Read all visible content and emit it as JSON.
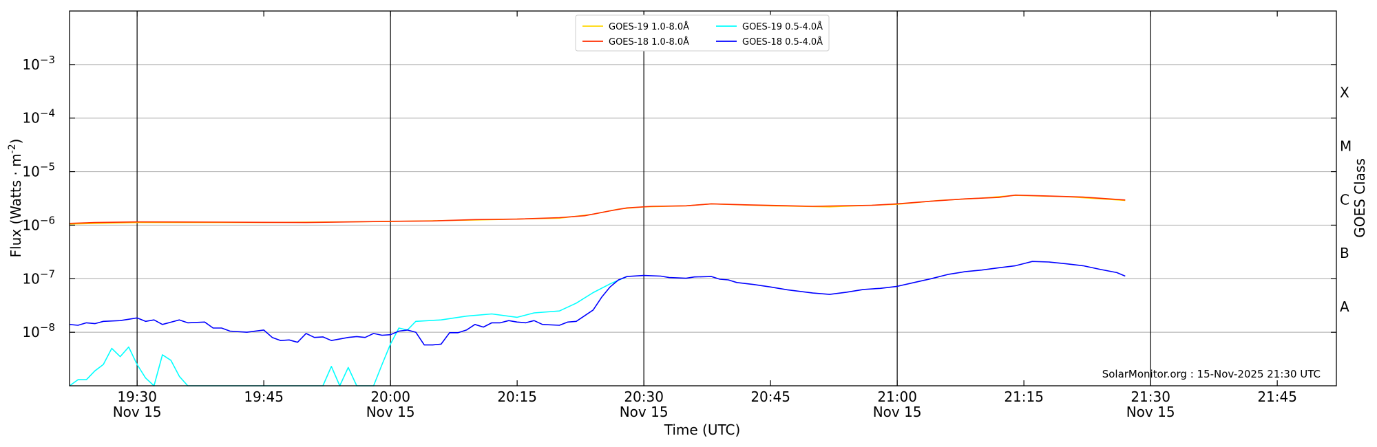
{
  "chart_data": {
    "type": "line",
    "y_scale": "log",
    "ylim": [
      1e-09,
      0.01
    ],
    "xlim": [
      "19:22",
      "21:52"
    ],
    "date": "Nov 15",
    "ylabel": "Flux (Watts · m⁻²)",
    "ylabel_exp": "-2",
    "xlabel": "Time (UTC)",
    "right_label": "GOES Class",
    "credit": "SolarMonitor.org : 15-Nov-2025 21:30 UTC",
    "grid": "horizontal",
    "legend_position": "top-center",
    "y_ticks": [
      {
        "value": 1e-08,
        "base": "10",
        "exp": "−8"
      },
      {
        "value": 1e-07,
        "base": "10",
        "exp": "−7"
      },
      {
        "value": 1e-06,
        "base": "10",
        "exp": "−6"
      },
      {
        "value": 1e-05,
        "base": "10",
        "exp": "−5"
      },
      {
        "value": 0.0001,
        "base": "10",
        "exp": "−4"
      },
      {
        "value": 0.001,
        "base": "10",
        "exp": "−3"
      }
    ],
    "x_ticks": [
      {
        "time": "19:30",
        "label": "19:30",
        "date": "Nov 15"
      },
      {
        "time": "19:45",
        "label": "19:45",
        "date": ""
      },
      {
        "time": "20:00",
        "label": "20:00",
        "date": "Nov 15"
      },
      {
        "time": "20:15",
        "label": "20:15",
        "date": ""
      },
      {
        "time": "20:30",
        "label": "20:30",
        "date": "Nov 15"
      },
      {
        "time": "20:45",
        "label": "20:45",
        "date": ""
      },
      {
        "time": "21:00",
        "label": "21:00",
        "date": "Nov 15"
      },
      {
        "time": "21:15",
        "label": "21:15",
        "date": ""
      },
      {
        "time": "21:30",
        "label": "21:30",
        "date": "Nov 15"
      },
      {
        "time": "21:45",
        "label": "21:45",
        "date": ""
      }
    ],
    "vertical_lines": [
      "19:30",
      "20:00",
      "20:30",
      "21:00",
      "21:30"
    ],
    "goes_classes": [
      {
        "label": "A",
        "value": 3e-08
      },
      {
        "label": "B",
        "value": 3e-07
      },
      {
        "label": "C",
        "value": 3e-06
      },
      {
        "label": "M",
        "value": 3e-05
      },
      {
        "label": "X",
        "value": 0.0003
      }
    ],
    "series": [
      {
        "name": "GOES-19 1.0-8.0Å",
        "color": "#ffd700",
        "points": [
          [
            "19:22",
            1.05e-06
          ],
          [
            "19:30",
            1.12e-06
          ],
          [
            "19:45",
            1.12e-06
          ],
          [
            "20:00",
            1.17e-06
          ],
          [
            "20:10",
            1.25e-06
          ],
          [
            "20:20",
            1.35e-06
          ],
          [
            "20:24",
            1.6e-06
          ],
          [
            "20:27",
            2e-06
          ],
          [
            "20:30",
            2.2e-06
          ],
          [
            "20:35",
            2.3e-06
          ],
          [
            "20:38",
            2.5e-06
          ],
          [
            "20:45",
            2.3e-06
          ],
          [
            "20:52",
            2.2e-06
          ],
          [
            "20:57",
            2.35e-06
          ],
          [
            "21:00",
            2.45e-06
          ],
          [
            "21:05",
            2.9e-06
          ],
          [
            "21:10",
            3.2e-06
          ],
          [
            "21:14",
            3.6e-06
          ],
          [
            "21:20",
            3.4e-06
          ],
          [
            "21:27",
            2.9e-06
          ]
        ]
      },
      {
        "name": "GOES-18 1.0-8.0Å",
        "color": "#ff2d00",
        "points": [
          [
            "19:22",
            1.08e-06
          ],
          [
            "19:25",
            1.12e-06
          ],
          [
            "19:30",
            1.15e-06
          ],
          [
            "19:40",
            1.14e-06
          ],
          [
            "19:50",
            1.12e-06
          ],
          [
            "20:00",
            1.18e-06
          ],
          [
            "20:05",
            1.2e-06
          ],
          [
            "20:10",
            1.27e-06
          ],
          [
            "20:15",
            1.3e-06
          ],
          [
            "20:20",
            1.38e-06
          ],
          [
            "20:23",
            1.5e-06
          ],
          [
            "20:26",
            1.85e-06
          ],
          [
            "20:28",
            2.1e-06
          ],
          [
            "20:31",
            2.25e-06
          ],
          [
            "20:35",
            2.3e-06
          ],
          [
            "20:38",
            2.5e-06
          ],
          [
            "20:42",
            2.4e-06
          ],
          [
            "20:50",
            2.25e-06
          ],
          [
            "20:57",
            2.35e-06
          ],
          [
            "21:00",
            2.5e-06
          ],
          [
            "21:04",
            2.8e-06
          ],
          [
            "21:08",
            3.1e-06
          ],
          [
            "21:12",
            3.3e-06
          ],
          [
            "21:14",
            3.65e-06
          ],
          [
            "21:18",
            3.5e-06
          ],
          [
            "21:22",
            3.35e-06
          ],
          [
            "21:27",
            2.95e-06
          ]
        ]
      },
      {
        "name": "GOES-19 0.5-4.0Å",
        "color": "#00ffff",
        "points": [
          [
            "19:22",
            1e-09
          ],
          [
            "19:23",
            1.3e-09
          ],
          [
            "19:24",
            1.3e-09
          ],
          [
            "19:25",
            1.9e-09
          ],
          [
            "19:26",
            2.5e-09
          ],
          [
            "19:27",
            5e-09
          ],
          [
            "19:28",
            3.5e-09
          ],
          [
            "19:29",
            5.3e-09
          ],
          [
            "19:30",
            2.5e-09
          ],
          [
            "19:31",
            1.4e-09
          ],
          [
            "19:32",
            7e-10
          ],
          [
            "19:33",
            3.8e-09
          ],
          [
            "19:34",
            3e-09
          ],
          [
            "19:35",
            1.5e-09
          ],
          [
            "19:36",
            1e-09
          ],
          [
            "19:52",
            1e-09
          ],
          [
            "19:53",
            2.3e-09
          ],
          [
            "19:54",
            1e-09
          ],
          [
            "19:55",
            2.2e-09
          ],
          [
            "19:56",
            1e-09
          ],
          [
            "19:57",
            8e-10
          ],
          [
            "19:58",
            1e-09
          ],
          [
            "19:59",
            2.5e-09
          ],
          [
            "20:00",
            6e-09
          ],
          [
            "20:01",
            1.2e-08
          ],
          [
            "20:02",
            1.1e-08
          ],
          [
            "20:03",
            1.6e-08
          ],
          [
            "20:06",
            1.7e-08
          ],
          [
            "20:09",
            2e-08
          ],
          [
            "20:12",
            2.2e-08
          ],
          [
            "20:15",
            1.9e-08
          ],
          [
            "20:17",
            2.3e-08
          ],
          [
            "20:20",
            2.5e-08
          ],
          [
            "20:22",
            3.5e-08
          ],
          [
            "20:24",
            5.5e-08
          ],
          [
            "20:26",
            8e-08
          ],
          [
            "20:28",
            1.1e-07
          ]
        ]
      },
      {
        "name": "GOES-18 0.5-4.0Å",
        "color": "#0000ff",
        "points": [
          [
            "19:22",
            1.4e-08
          ],
          [
            "19:23",
            1.35e-08
          ],
          [
            "19:24",
            1.5e-08
          ],
          [
            "19:25",
            1.45e-08
          ],
          [
            "19:26",
            1.6e-08
          ],
          [
            "19:28",
            1.65e-08
          ],
          [
            "19:30",
            1.85e-08
          ],
          [
            "19:31",
            1.6e-08
          ],
          [
            "19:32",
            1.7e-08
          ],
          [
            "19:33",
            1.4e-08
          ],
          [
            "19:35",
            1.7e-08
          ],
          [
            "19:36",
            1.5e-08
          ],
          [
            "19:38",
            1.55e-08
          ],
          [
            "19:39",
            1.2e-08
          ],
          [
            "19:40",
            1.2e-08
          ],
          [
            "19:41",
            1.05e-08
          ],
          [
            "19:43",
            1e-08
          ],
          [
            "19:45",
            1.1e-08
          ],
          [
            "19:46",
            8e-09
          ],
          [
            "19:47",
            7e-09
          ],
          [
            "19:48",
            7.2e-09
          ],
          [
            "19:49",
            6.5e-09
          ],
          [
            "19:50",
            9.5e-09
          ],
          [
            "19:51",
            8e-09
          ],
          [
            "19:52",
            8.2e-09
          ],
          [
            "19:53",
            7e-09
          ],
          [
            "19:55",
            8e-09
          ],
          [
            "19:56",
            8.3e-09
          ],
          [
            "19:57",
            8e-09
          ],
          [
            "19:58",
            9.5e-09
          ],
          [
            "19:59",
            8.8e-09
          ],
          [
            "20:00",
            9e-09
          ],
          [
            "20:01",
            1.05e-08
          ],
          [
            "20:02",
            1.1e-08
          ],
          [
            "20:03",
            1e-08
          ],
          [
            "20:04",
            5.8e-09
          ],
          [
            "20:05",
            5.8e-09
          ],
          [
            "20:06",
            6e-09
          ],
          [
            "20:07",
            9.8e-09
          ],
          [
            "20:08",
            9.8e-09
          ],
          [
            "20:09",
            1.1e-08
          ],
          [
            "20:10",
            1.4e-08
          ],
          [
            "20:11",
            1.25e-08
          ],
          [
            "20:12",
            1.5e-08
          ],
          [
            "20:13",
            1.5e-08
          ],
          [
            "20:14",
            1.65e-08
          ],
          [
            "20:15",
            1.55e-08
          ],
          [
            "20:16",
            1.5e-08
          ],
          [
            "20:17",
            1.65e-08
          ],
          [
            "20:18",
            1.4e-08
          ],
          [
            "20:20",
            1.35e-08
          ],
          [
            "20:21",
            1.55e-08
          ],
          [
            "20:22",
            1.6e-08
          ],
          [
            "20:24",
            2.6e-08
          ],
          [
            "20:25",
            4.5e-08
          ],
          [
            "20:26",
            7e-08
          ],
          [
            "20:27",
            9.5e-08
          ],
          [
            "20:28",
            1.1e-07
          ],
          [
            "20:30",
            1.15e-07
          ],
          [
            "20:32",
            1.12e-07
          ],
          [
            "20:33",
            1.05e-07
          ],
          [
            "20:35",
            1.02e-07
          ],
          [
            "20:36",
            1.08e-07
          ],
          [
            "20:38",
            1.1e-07
          ],
          [
            "20:39",
            9.8e-08
          ],
          [
            "20:40",
            9.5e-08
          ],
          [
            "20:41",
            8.5e-08
          ],
          [
            "20:43",
            7.8e-08
          ],
          [
            "20:45",
            7e-08
          ],
          [
            "20:47",
            6.2e-08
          ],
          [
            "20:50",
            5.4e-08
          ],
          [
            "20:52",
            5.1e-08
          ],
          [
            "20:54",
            5.6e-08
          ],
          [
            "20:56",
            6.3e-08
          ],
          [
            "20:58",
            6.6e-08
          ],
          [
            "21:00",
            7.2e-08
          ],
          [
            "21:02",
            8.5e-08
          ],
          [
            "21:04",
            1e-07
          ],
          [
            "21:06",
            1.2e-07
          ],
          [
            "21:08",
            1.35e-07
          ],
          [
            "21:10",
            1.45e-07
          ],
          [
            "21:12",
            1.6e-07
          ],
          [
            "21:14",
            1.75e-07
          ],
          [
            "21:16",
            2.1e-07
          ],
          [
            "21:18",
            2.05e-07
          ],
          [
            "21:20",
            1.9e-07
          ],
          [
            "21:22",
            1.75e-07
          ],
          [
            "21:24",
            1.5e-07
          ],
          [
            "21:26",
            1.3e-07
          ],
          [
            "21:27",
            1.12e-07
          ]
        ]
      }
    ]
  }
}
